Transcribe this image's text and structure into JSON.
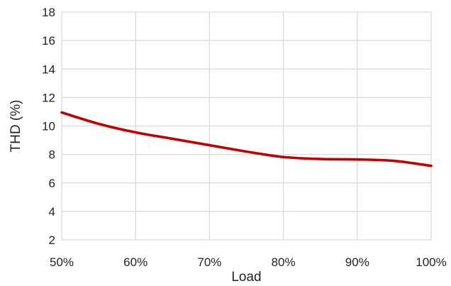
{
  "chart_data": {
    "type": "line",
    "title": "",
    "xlabel": "Load",
    "ylabel": "THD (%)",
    "x": [
      0.5,
      0.55,
      0.6,
      0.65,
      0.7,
      0.75,
      0.8,
      0.85,
      0.9,
      0.95,
      1.0
    ],
    "x_tick_labels": [
      "50%",
      "60%",
      "70%",
      "80%",
      "90%",
      "100%"
    ],
    "x_ticks": [
      0.5,
      0.6,
      0.7,
      0.8,
      0.9,
      1.0
    ],
    "xlim": [
      0.5,
      1.0
    ],
    "y_ticks": [
      2,
      4,
      6,
      8,
      10,
      12,
      14,
      16,
      18
    ],
    "y_tick_labels": [
      "2",
      "4",
      "6",
      "8",
      "10",
      "12",
      "14",
      "16",
      "18"
    ],
    "ylim": [
      2,
      18
    ],
    "grid": true,
    "legend": "none",
    "series": [
      {
        "color": "#c00000",
        "values": [
          10.95,
          10.15,
          9.55,
          9.1,
          8.65,
          8.2,
          7.82,
          7.68,
          7.65,
          7.55,
          7.2
        ]
      }
    ]
  }
}
